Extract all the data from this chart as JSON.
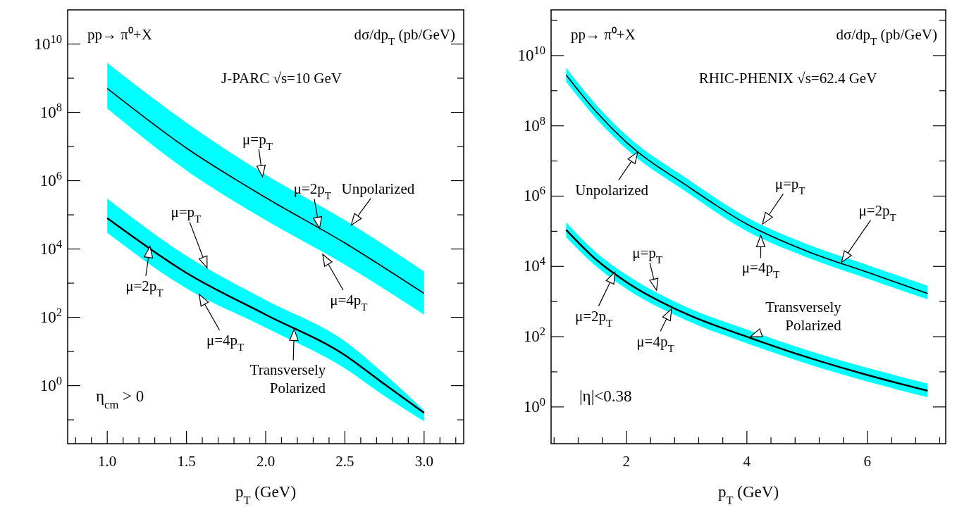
{
  "chart_data": [
    {
      "type": "line",
      "log": true,
      "title": "pp→ π⁰+X",
      "ylabel": "dσ/dp$_{T}$ (pb/GeV)",
      "subtitle": "J-PARC √s=10 GeV",
      "xlabel": "p$_{T}$ (GeV)",
      "xlim": [
        0.75,
        3.25
      ],
      "ylim": [
        0.02,
        100000000000.0
      ],
      "xticks": [
        {
          "value": 0.8,
          "label": null
        },
        {
          "value": 0.9,
          "label": null
        },
        {
          "value": 1,
          "label": "1.0"
        },
        {
          "value": 1.1,
          "label": null
        },
        {
          "value": 1.2,
          "label": null
        },
        {
          "value": 1.3,
          "label": null
        },
        {
          "value": 1.4,
          "label": null
        },
        {
          "value": 1.5,
          "label": "1.5"
        },
        {
          "value": 1.6,
          "label": null
        },
        {
          "value": 1.7,
          "label": null
        },
        {
          "value": 1.8,
          "label": null
        },
        {
          "value": 1.9,
          "label": null
        },
        {
          "value": 2,
          "label": "2.0"
        },
        {
          "value": 2.1,
          "label": null
        },
        {
          "value": 2.2,
          "label": null
        },
        {
          "value": 2.3,
          "label": null
        },
        {
          "value": 2.4,
          "label": null
        },
        {
          "value": 2.5,
          "label": "2.5"
        },
        {
          "value": 2.6,
          "label": null
        },
        {
          "value": 2.7,
          "label": null
        },
        {
          "value": 2.8,
          "label": null
        },
        {
          "value": 2.9,
          "label": null
        },
        {
          "value": 3,
          "label": "3.0"
        },
        {
          "value": 3.1,
          "label": null
        },
        {
          "value": 3.2,
          "label": null
        }
      ],
      "yticks": [
        {
          "value": 0.1,
          "label": null
        },
        {
          "value": 1,
          "label": "10$^{0}$"
        },
        {
          "value": 10,
          "label": null
        },
        {
          "value": 100,
          "label": "10$^{2}$"
        },
        {
          "value": 1000,
          "label": null
        },
        {
          "value": 10000,
          "label": "10$^{4}$"
        },
        {
          "value": 100000,
          "label": null
        },
        {
          "value": 1000000,
          "label": "10$^{6}$"
        },
        {
          "value": 10000000,
          "label": null
        },
        {
          "value": 100000000,
          "label": "10$^{8}$"
        },
        {
          "value": 1000000000,
          "label": null
        },
        {
          "value": 10000000000,
          "label": "10$^{10}$"
        }
      ],
      "series": [
        {
          "color": "#000000",
          "x": [
            1,
            1.5,
            2,
            2.5,
            3
          ],
          "values": [
            500000000.0,
            9000000.0,
            320000.0,
            15000.0,
            500
          ],
          "upper": [
            2800000000.0,
            50000000.0,
            1500000.0,
            70000.0,
            2200
          ],
          "lower": [
            130000000.0,
            2000000.0,
            70000.0,
            3500,
            120
          ]
        },
        {
          "color": "#000000",
          "x": [
            1,
            1.5,
            2,
            2.5,
            2.75,
            3
          ],
          "values": [
            80000.0,
            2000,
            120,
            7.8,
            1.1,
            0.16
          ],
          "upper": [
            300000.0,
            6300,
            320,
            20,
            2.2,
            0.19
          ],
          "lower": [
            30000.0,
            700,
            50,
            3.2,
            0.5,
            0.09
          ]
        }
      ],
      "annotations": [
        {
          "text": "μ=p$_{T}$",
          "x": 1.98,
          "y": 1300000.0
        },
        {
          "text": "μ=2p$_{T}$",
          "x": 2.34,
          "y": 40000.0
        },
        {
          "text": "Unpolarized",
          "x": 2.54,
          "y": 50000.0
        },
        {
          "text": "μ=4p$_{T}$",
          "x": 2.36,
          "y": 7000
        },
        {
          "text": "μ=p$_{T}$",
          "x": 1.63,
          "y": 2800
        },
        {
          "text": "μ=2p$_{T}$",
          "x": 1.27,
          "y": 12000
        },
        {
          "text": "μ=4p$_{T}$",
          "x": 1.58,
          "y": 470
        },
        {
          "text": "Transversely Polarized",
          "x": 2.18,
          "y": 45
        },
        "η$_{cm}$ > 0"
      ]
    },
    {
      "type": "line",
      "log": true,
      "title": "pp→ π⁰+X",
      "ylabel": "dσ/dp$_{T}$ (pb/GeV)",
      "subtitle": "RHIC-PHENIX √s=62.4 GeV",
      "xlabel": "p$_{T}$ (GeV)",
      "xlim": [
        0.75,
        7.3
      ],
      "ylim": [
        0.09,
        200000000000.0
      ],
      "xticks": [
        {
          "value": 0.8,
          "label": null
        },
        {
          "value": 1.2,
          "label": null
        },
        {
          "value": 1.6,
          "label": null
        },
        {
          "value": 2,
          "label": "2"
        },
        {
          "value": 2.4,
          "label": null
        },
        {
          "value": 2.8,
          "label": null
        },
        {
          "value": 3.2,
          "label": null
        },
        {
          "value": 3.6,
          "label": null
        },
        {
          "value": 4,
          "label": "4"
        },
        {
          "value": 4.4,
          "label": null
        },
        {
          "value": 4.8,
          "label": null
        },
        {
          "value": 5.2,
          "label": null
        },
        {
          "value": 5.6,
          "label": null
        },
        {
          "value": 6,
          "label": "6"
        },
        {
          "value": 6.4,
          "label": null
        },
        {
          "value": 6.8,
          "label": null
        },
        {
          "value": 7.2,
          "label": null
        }
      ],
      "yticks": [
        {
          "value": 1,
          "label": "10$^{0}$"
        },
        {
          "value": 10,
          "label": null
        },
        {
          "value": 100,
          "label": "10$^{2}$"
        },
        {
          "value": 1000,
          "label": null
        },
        {
          "value": 10000,
          "label": "10$^{4}$"
        },
        {
          "value": 100000,
          "label": null
        },
        {
          "value": 1000000,
          "label": "10$^{6}$"
        },
        {
          "value": 10000000,
          "label": null
        },
        {
          "value": 100000000,
          "label": "10$^{8}$"
        },
        {
          "value": 1000000000,
          "label": null
        },
        {
          "value": 10000000000,
          "label": "10$^{10}$"
        },
        {
          "value": 100000000000,
          "label": null
        }
      ],
      "series": [
        {
          "color": "#000000",
          "x": [
            1,
            1.5,
            2,
            3,
            4,
            5,
            6,
            7
          ],
          "values": [
            2800000000.0,
            250000000.0,
            34000000.0,
            2000000.0,
            160000.0,
            27000.0,
            6800,
            1700
          ],
          "upper": [
            4500000000.0,
            400000000.0,
            54000000.0,
            3200000.0,
            250000.0,
            43000.0,
            11000.0,
            2800
          ],
          "lower": [
            1800000000.0,
            160000000.0,
            22000000.0,
            1300000.0,
            100000.0,
            18000.0,
            4500,
            1150
          ]
        },
        {
          "color": "#000000",
          "x": [
            1,
            1.5,
            2,
            3,
            4,
            5,
            6,
            7
          ],
          "values": [
            110000.0,
            15500.0,
            3600,
            440,
            100,
            26,
            8.1,
            2.9
          ],
          "upper": [
            180000.0,
            25000.0,
            5800,
            700,
            160,
            41,
            13,
            4.6
          ],
          "lower": [
            68000.0,
            10000.0,
            2300,
            290,
            65,
            17,
            5.3,
            1.9
          ]
        }
      ],
      "annotations": [
        {
          "text": "Unpolarized",
          "x": 2.19,
          "y": 18000000.0
        },
        {
          "text": "μ=p$_{T}$",
          "x": 4.26,
          "y": 160000.0
        },
        {
          "text": "μ=4p$_{T}$",
          "x": 4.23,
          "y": 76000.0
        },
        {
          "text": "μ=2p$_{T}$",
          "x": 5.57,
          "y": 13000.0
        },
        {
          "text": "μ=p$_{T}$",
          "x": 2.5,
          "y": 2100
        },
        {
          "text": "μ=2p$_{T}$",
          "x": 1.81,
          "y": 6800
        },
        {
          "text": "μ=4p$_{T}$",
          "x": 2.75,
          "y": 620
        },
        {
          "text": "Transversely Polarized",
          "x": 4.06,
          "y": 100
        },
        "|η|<0.38"
      ]
    }
  ]
}
